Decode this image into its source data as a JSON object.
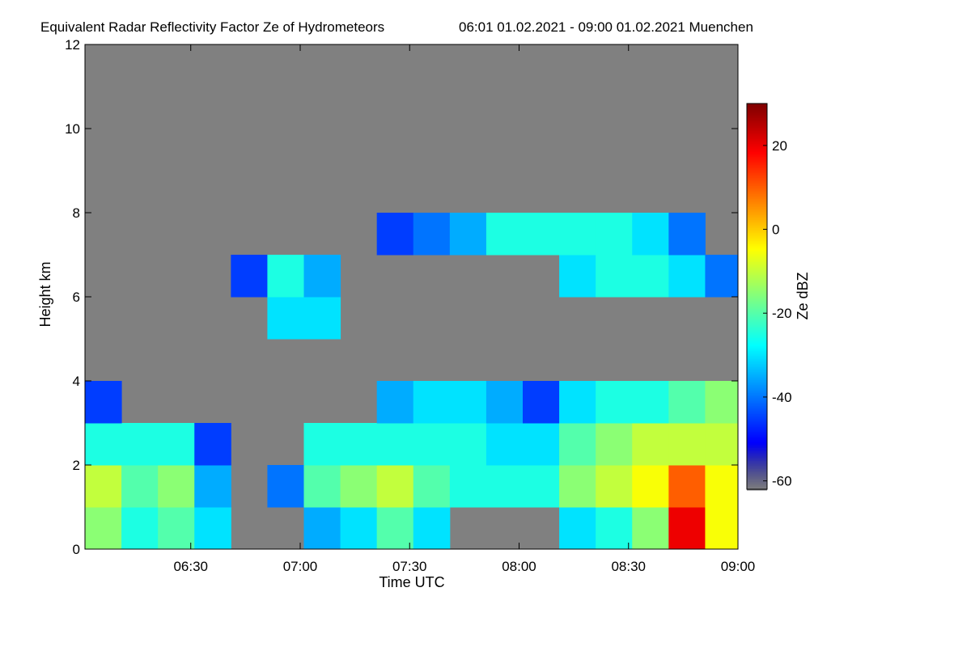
{
  "chart_data": {
    "type": "heatmap",
    "title": "Equivalent Radar Reflectivity Factor Ze of Hydrometeors",
    "subtitle": "06:01 01.02.2021 - 09:00 01.02.2021 Muenchen",
    "x_label": "Time UTC",
    "y_label": "Height km",
    "colorbar_label": "Ze dBZ",
    "xlim": [
      361,
      540
    ],
    "xticks": [
      {
        "value": 390,
        "label": "06:30"
      },
      {
        "value": 420,
        "label": "07:00"
      },
      {
        "value": 450,
        "label": "07:30"
      },
      {
        "value": 480,
        "label": "08:00"
      },
      {
        "value": 510,
        "label": "08:30"
      },
      {
        "value": 540,
        "label": "09:00"
      }
    ],
    "ylim": [
      0,
      12
    ],
    "yticks": [
      0,
      2,
      4,
      6,
      8,
      10,
      12
    ],
    "clim": [
      -62,
      30
    ],
    "cticks": [
      -60,
      -40,
      -20,
      0,
      20
    ],
    "xbins": [
      361,
      371,
      381,
      391,
      401,
      411,
      421,
      431,
      441,
      451,
      461,
      471,
      481,
      491,
      501,
      511,
      521,
      531,
      540
    ],
    "ybins": [
      0,
      1,
      2,
      3,
      4,
      5,
      6,
      7,
      8,
      9,
      10,
      11,
      12
    ],
    "values": [
      [
        -15,
        -25,
        -20,
        -30,
        null,
        null,
        -35,
        -30,
        -20,
        -30,
        null,
        null,
        null,
        -30,
        -25,
        -15,
        20,
        -5
      ],
      [
        -10,
        -20,
        -15,
        -35,
        null,
        -40,
        -20,
        -15,
        -10,
        -20,
        -25,
        -25,
        -25,
        -15,
        -10,
        -5,
        10,
        -5
      ],
      [
        -25,
        -25,
        -25,
        -45,
        null,
        null,
        -25,
        -25,
        -25,
        -25,
        -25,
        -30,
        -30,
        -20,
        -15,
        -10,
        -10,
        -10
      ],
      [
        -45,
        null,
        null,
        null,
        null,
        null,
        null,
        null,
        -35,
        -30,
        -30,
        -35,
        -45,
        -30,
        -25,
        -25,
        -20,
        -15
      ],
      [
        null,
        null,
        null,
        null,
        null,
        null,
        null,
        null,
        null,
        null,
        null,
        null,
        null,
        null,
        null,
        null,
        null,
        null
      ],
      [
        null,
        null,
        null,
        null,
        null,
        -30,
        -30,
        null,
        null,
        null,
        null,
        null,
        null,
        null,
        null,
        null,
        null,
        null
      ],
      [
        null,
        null,
        null,
        null,
        -45,
        -25,
        -35,
        null,
        null,
        null,
        null,
        null,
        null,
        -30,
        -25,
        -25,
        -30,
        -40
      ],
      [
        null,
        null,
        null,
        null,
        null,
        null,
        null,
        null,
        -45,
        -40,
        -35,
        -25,
        -25,
        -25,
        -25,
        -30,
        -40,
        null
      ],
      [
        null,
        null,
        null,
        null,
        null,
        null,
        null,
        null,
        null,
        null,
        null,
        null,
        null,
        null,
        null,
        null,
        null,
        null
      ],
      [
        null,
        null,
        null,
        null,
        null,
        null,
        null,
        null,
        null,
        null,
        null,
        null,
        null,
        null,
        null,
        null,
        null,
        null
      ],
      [
        null,
        null,
        null,
        null,
        null,
        null,
        null,
        null,
        null,
        null,
        null,
        null,
        null,
        null,
        null,
        null,
        null,
        null
      ],
      [
        null,
        null,
        null,
        null,
        null,
        null,
        null,
        null,
        null,
        null,
        null,
        null,
        null,
        null,
        null,
        null,
        null,
        null
      ]
    ]
  }
}
